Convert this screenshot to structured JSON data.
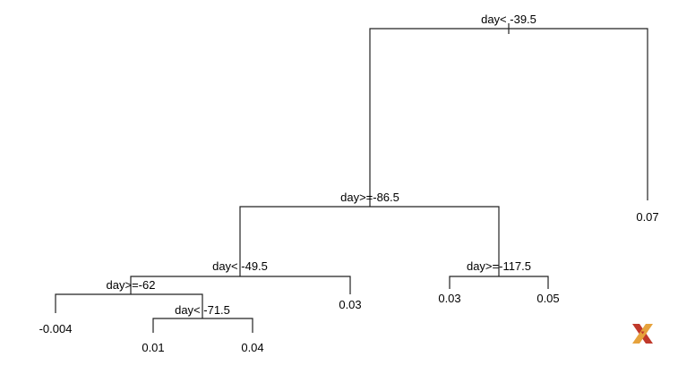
{
  "tree": {
    "splits": [
      {
        "id": "root",
        "label": "day< -39.5"
      },
      {
        "id": "s2",
        "label": "day>=-86.5"
      },
      {
        "id": "s3",
        "label": "day< -49.5"
      },
      {
        "id": "s4",
        "label": "day>=-117.5"
      },
      {
        "id": "s5",
        "label": "day>=-62"
      },
      {
        "id": "s6",
        "label": "day< -71.5"
      }
    ],
    "leaves": [
      {
        "id": "l1",
        "value": "0.07"
      },
      {
        "id": "l2",
        "value": "0.03"
      },
      {
        "id": "l3",
        "value": "0.03"
      },
      {
        "id": "l4",
        "value": "0.05"
      },
      {
        "id": "l5",
        "value": "-0.004"
      },
      {
        "id": "l6",
        "value": "0.01"
      },
      {
        "id": "l7",
        "value": "0.04"
      }
    ]
  },
  "logo": {
    "name": "x-logo-icon",
    "colors": [
      "#c0392b",
      "#e6a23c"
    ]
  }
}
